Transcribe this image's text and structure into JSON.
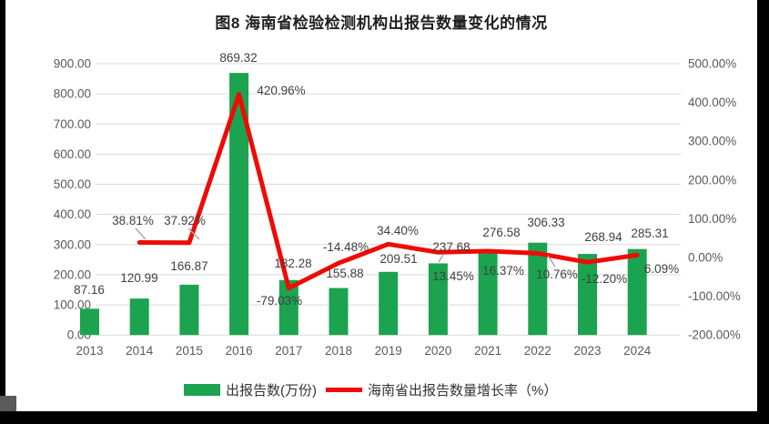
{
  "title": "图8 海南省检验检测机构出报告数量变化的情况",
  "legend": {
    "bar": {
      "label": "出报告数(万份)",
      "color": "#1CA350"
    },
    "line": {
      "label": "海南省出报告数量增长率（%）",
      "color": "#EE0B04"
    }
  },
  "chart_data": {
    "type": "bar+line-combo",
    "title": "图8 海南省检验检测机构出报告数量变化的情况",
    "categories": [
      "2013",
      "2014",
      "2015",
      "2016",
      "2017",
      "2018",
      "2019",
      "2020",
      "2021",
      "2022",
      "2023",
      "2024"
    ],
    "series": [
      {
        "name": "出报告数(万份)",
        "type": "bar",
        "axis": "left",
        "color": "#1CA350",
        "values": [
          87.16,
          120.99,
          166.87,
          869.32,
          182.28,
          155.88,
          209.51,
          237.68,
          276.58,
          306.33,
          268.94,
          285.31
        ],
        "labels": [
          "87.16",
          "120.99",
          "166.87",
          "869.32",
          "182.28",
          "155.88",
          "209.51",
          "237.68",
          "276.58",
          "306.33",
          "268.94",
          "285.31"
        ]
      },
      {
        "name": "海南省出报告数量增长率（%）",
        "type": "line",
        "axis": "right",
        "color": "#EE0B04",
        "values": [
          null,
          38.81,
          37.92,
          420.96,
          -79.03,
          -14.48,
          34.4,
          13.45,
          16.37,
          10.76,
          -12.2,
          6.09
        ],
        "labels": [
          null,
          "38.81%",
          "37.92%",
          "420.96%",
          "-79.03%",
          "-14.48%",
          "34.40%",
          "13.45%",
          "16.37%",
          "10.76%",
          "-12.20%",
          "6.09%"
        ]
      }
    ],
    "left_axis": {
      "min": 0,
      "max": 900,
      "step": 100,
      "tick_labels": [
        "0.00",
        "100.00",
        "200.00",
        "300.00",
        "400.00",
        "500.00",
        "600.00",
        "700.00",
        "800.00",
        "900.00"
      ]
    },
    "right_axis": {
      "min": -200,
      "max": 500,
      "step": 100,
      "tick_labels": [
        "-200.00%",
        "-100.00%",
        "0.00%",
        "100.00%",
        "200.00%",
        "300.00%",
        "400.00%",
        "500.00%"
      ]
    },
    "grid": true,
    "grid_color": "#D9D9D9",
    "label_color": "#3f3f3f",
    "axis_label_color": "#595959",
    "legend_position": "bottom"
  }
}
